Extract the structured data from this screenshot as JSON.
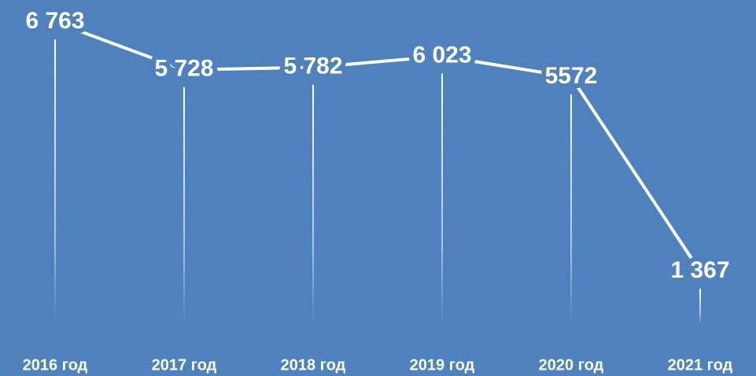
{
  "chart_data": {
    "type": "line",
    "categories": [
      "2016 год",
      "2017 год",
      "2018 год",
      "2019 год",
      "2020 год",
      "2021 год"
    ],
    "series": [
      {
        "color": "#ffffff",
        "values": [
          6763,
          5728,
          5782,
          6023,
          5572,
          1367
        ],
        "value_labels": [
          "6 763",
          "5 728",
          "5 782",
          "6 023",
          "5572",
          "1 367"
        ]
      }
    ],
    "background": "#4f81bd"
  }
}
